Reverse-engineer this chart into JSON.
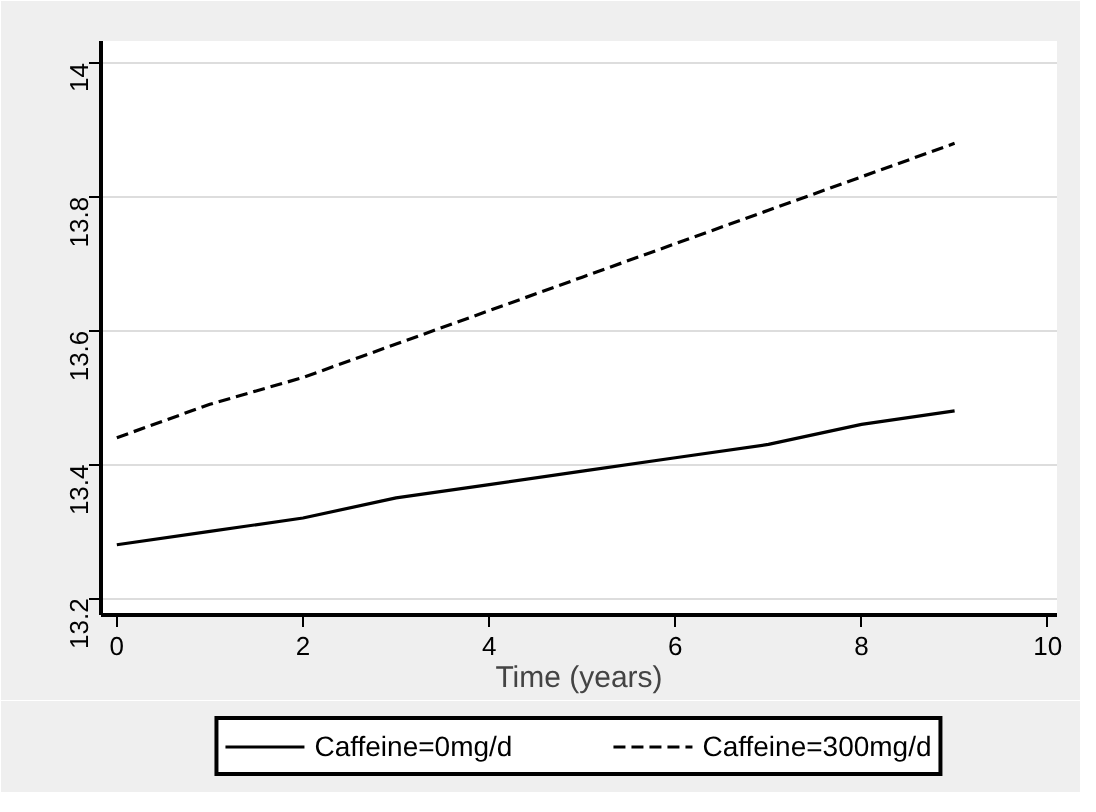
{
  "chart_data": {
    "type": "line",
    "xlabel": "Time (years)",
    "x": [
      0,
      1,
      2,
      3,
      4,
      5,
      6,
      7,
      8,
      9
    ],
    "series": [
      {
        "name": "Caffeine=0mg/d",
        "color": "#000000",
        "line_style": "solid",
        "values": [
          13.28,
          13.3,
          13.32,
          13.35,
          13.37,
          13.39,
          13.41,
          13.43,
          13.46,
          13.48
        ]
      },
      {
        "name": "Caffeine=300mg/d",
        "color": "#000000",
        "line_style": "dashed",
        "values": [
          13.44,
          13.49,
          13.53,
          13.58,
          13.63,
          13.68,
          13.73,
          13.78,
          13.83,
          13.88
        ]
      }
    ],
    "xlim": [
      -0.17,
      10.1
    ],
    "ylim": [
      13.175,
      14.033
    ],
    "xticks": [
      0,
      2,
      4,
      6,
      8,
      10
    ],
    "yticks": [
      13.2,
      13.4,
      13.6,
      13.8,
      14
    ],
    "grid": "y",
    "legend": "bottom",
    "marker": "none"
  }
}
